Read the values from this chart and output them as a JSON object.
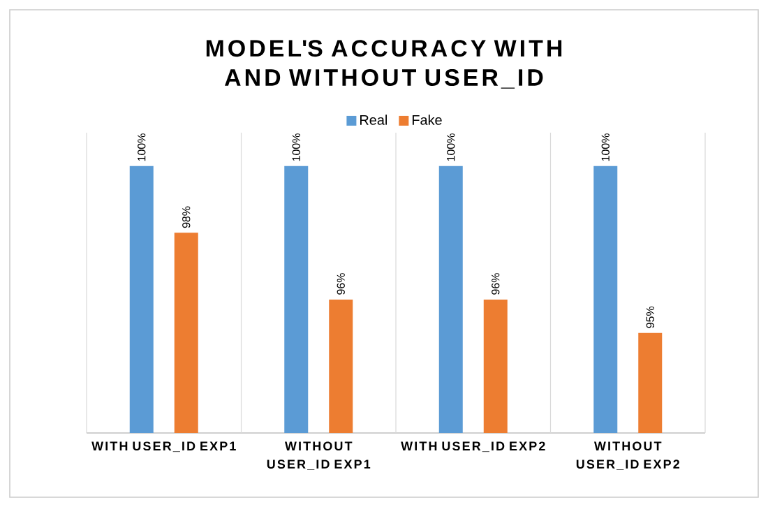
{
  "chart_data": {
    "type": "bar",
    "title": "MODEL'S ACCURACY WITH AND WITHOUT USER_ID",
    "categories": [
      "WITH USER_ID EXP1",
      "WITHOUT USER_ID EXP1",
      "WITH USER_ID EXP2",
      "WITHOUT USER_ID EXP2"
    ],
    "series": [
      {
        "name": "Real",
        "color": "#5b9bd5",
        "values": [
          100,
          100,
          100,
          100
        ],
        "value_labels": [
          "100%",
          "100%",
          "100%",
          "100%"
        ]
      },
      {
        "name": "Fake",
        "color": "#ed7d31",
        "values": [
          98,
          96,
          96,
          95
        ],
        "value_labels": [
          "98%",
          "96%",
          "96%",
          "95%"
        ]
      }
    ],
    "ylim": [
      92,
      101
    ],
    "tick_labels": "x",
    "grid": "x",
    "legend": "top"
  }
}
